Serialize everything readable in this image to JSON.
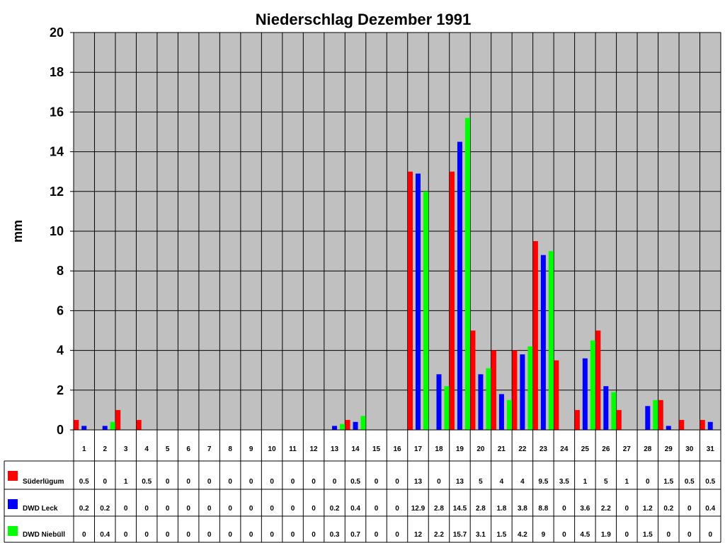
{
  "chart_data": {
    "type": "bar",
    "title": "Niederschlag Dezember 1991",
    "ylabel": "mm",
    "xlabel": "",
    "ylim": [
      0,
      20
    ],
    "yticks": [
      0,
      2,
      4,
      6,
      8,
      10,
      12,
      14,
      16,
      18,
      20
    ],
    "grid": true,
    "legend_position": "bottom-left table",
    "categories": [
      "1",
      "2",
      "3",
      "4",
      "5",
      "6",
      "7",
      "8",
      "9",
      "10",
      "11",
      "12",
      "13",
      "14",
      "15",
      "16",
      "17",
      "18",
      "19",
      "20",
      "21",
      "22",
      "23",
      "24",
      "25",
      "26",
      "27",
      "28",
      "29",
      "30",
      "31"
    ],
    "series": [
      {
        "name": "Süderlügum",
        "color": "#ff0000",
        "values": [
          0.5,
          0,
          1,
          0.5,
          0,
          0,
          0,
          0,
          0,
          0,
          0,
          0,
          0,
          0.5,
          0,
          0,
          13,
          0,
          13,
          5,
          4,
          4,
          9.5,
          3.5,
          1,
          5,
          1,
          0,
          1.5,
          0.5,
          0.5
        ]
      },
      {
        "name": "DWD Leck",
        "color": "#0000ff",
        "values": [
          0.2,
          0.2,
          0,
          0,
          0,
          0,
          0,
          0,
          0,
          0,
          0,
          0,
          0.2,
          0.4,
          0,
          0,
          12.9,
          2.8,
          14.5,
          2.8,
          1.8,
          3.8,
          8.8,
          0,
          3.6,
          2.2,
          0,
          1.2,
          0.2,
          0,
          0.4
        ]
      },
      {
        "name": "DWD Niebüll",
        "color": "#00ff00",
        "values": [
          0,
          0.4,
          0,
          0,
          0,
          0,
          0,
          0,
          0,
          0,
          0,
          0,
          0.3,
          0.7,
          0,
          0,
          12,
          2.2,
          15.7,
          3.1,
          1.5,
          4.2,
          9,
          0,
          4.5,
          1.9,
          0,
          1.5,
          0,
          0,
          0
        ]
      }
    ],
    "plot_background": "#c0c0c0"
  }
}
